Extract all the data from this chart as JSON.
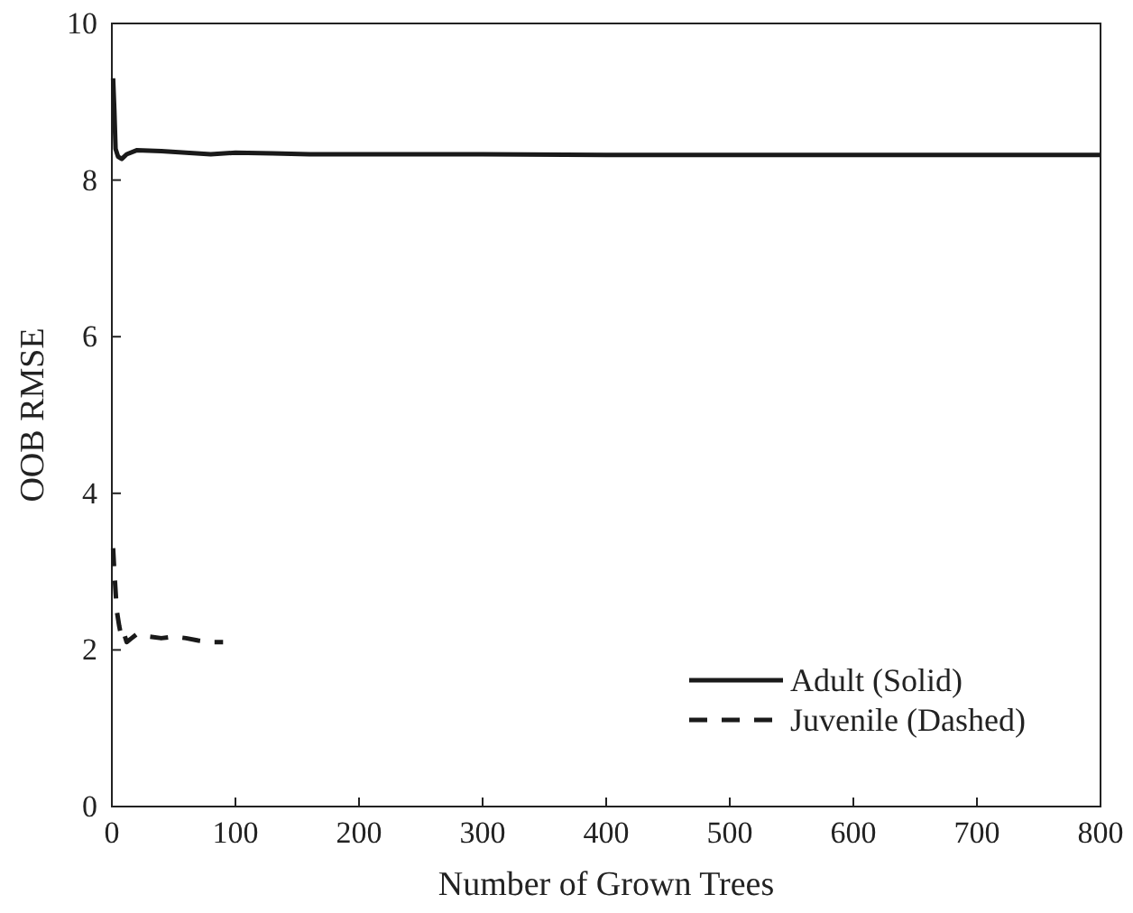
{
  "chart_data": {
    "type": "line",
    "xlabel": "Number of Grown Trees",
    "ylabel": "OOB RMSE",
    "xlim": [
      0,
      800
    ],
    "ylim": [
      0,
      10
    ],
    "xticks": [
      0,
      100,
      200,
      300,
      400,
      500,
      600,
      700,
      800
    ],
    "yticks": [
      0,
      2,
      4,
      6,
      8,
      10
    ],
    "grid": false,
    "legend": "bottom right",
    "marker": "none",
    "series": [
      {
        "name": "Adult (Solid)",
        "color": "#1a1a1a",
        "line_style": "solid",
        "x": [
          1,
          2,
          3,
          5,
          8,
          12,
          20,
          40,
          60,
          80,
          100,
          130,
          160,
          200,
          300,
          400,
          500,
          600,
          700,
          800
        ],
        "values": [
          9.3,
          8.9,
          8.4,
          8.3,
          8.27,
          8.33,
          8.38,
          8.37,
          8.35,
          8.33,
          8.35,
          8.34,
          8.33,
          8.33,
          8.33,
          8.32,
          8.32,
          8.32,
          8.32,
          8.32
        ]
      },
      {
        "name": "Juvenile (Dashed)",
        "color": "#1a1a1a",
        "line_style": "dashed",
        "x": [
          1,
          2,
          4,
          6,
          8,
          10,
          12,
          16,
          20,
          30,
          40,
          50,
          60,
          70,
          80,
          90
        ],
        "values": [
          3.3,
          3.0,
          2.5,
          2.3,
          2.15,
          2.2,
          2.1,
          2.15,
          2.2,
          2.17,
          2.15,
          2.17,
          2.15,
          2.12,
          2.1,
          2.1
        ]
      }
    ]
  }
}
